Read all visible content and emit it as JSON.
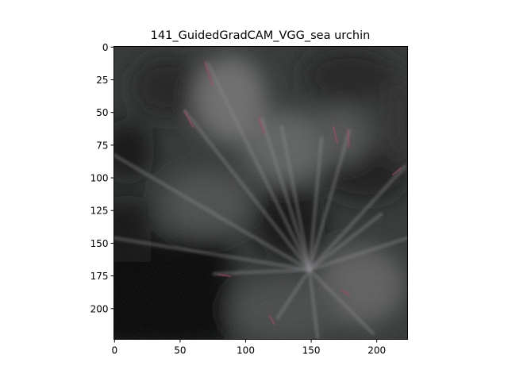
{
  "figure": {
    "title": "141_GuidedGradCAM_VGG_sea urchin"
  },
  "image": {
    "depicts": "guided grad-cam saliency heatmap of a sea urchin",
    "colors": {
      "dark": "#050505",
      "mid_gray": "#3a3d3c",
      "light_gray": "#6f7070",
      "spine_tint": "#b0485f"
    }
  },
  "axes": {
    "x": {
      "ticks": [
        0,
        50,
        100,
        150,
        200
      ],
      "range": [
        0,
        224
      ]
    },
    "y": {
      "ticks": [
        0,
        25,
        50,
        75,
        100,
        125,
        150,
        175,
        200
      ],
      "range": [
        0,
        224
      ]
    }
  }
}
